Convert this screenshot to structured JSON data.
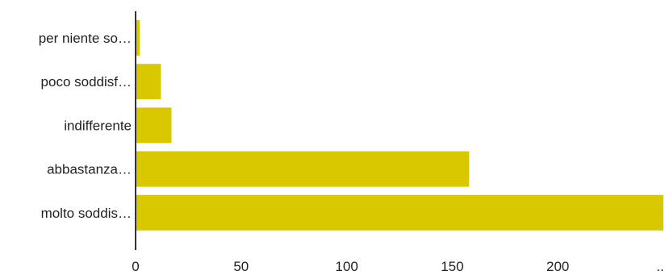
{
  "chart_data": {
    "type": "bar",
    "orientation": "horizontal",
    "categories": [
      "per niente so…",
      "poco soddisf…",
      "indifferente",
      "abbastanza…",
      "molto soddis…"
    ],
    "values": [
      2,
      12,
      17,
      158,
      250
    ],
    "title": "",
    "xlabel": "",
    "ylabel": "",
    "xlim": [
      0,
      250
    ],
    "x_ticks": [
      "0",
      "50",
      "100",
      "150",
      "200",
      ".."
    ],
    "grid": false,
    "legend": "none",
    "bar_color": "#d9c800",
    "axis_color": "#333333"
  }
}
